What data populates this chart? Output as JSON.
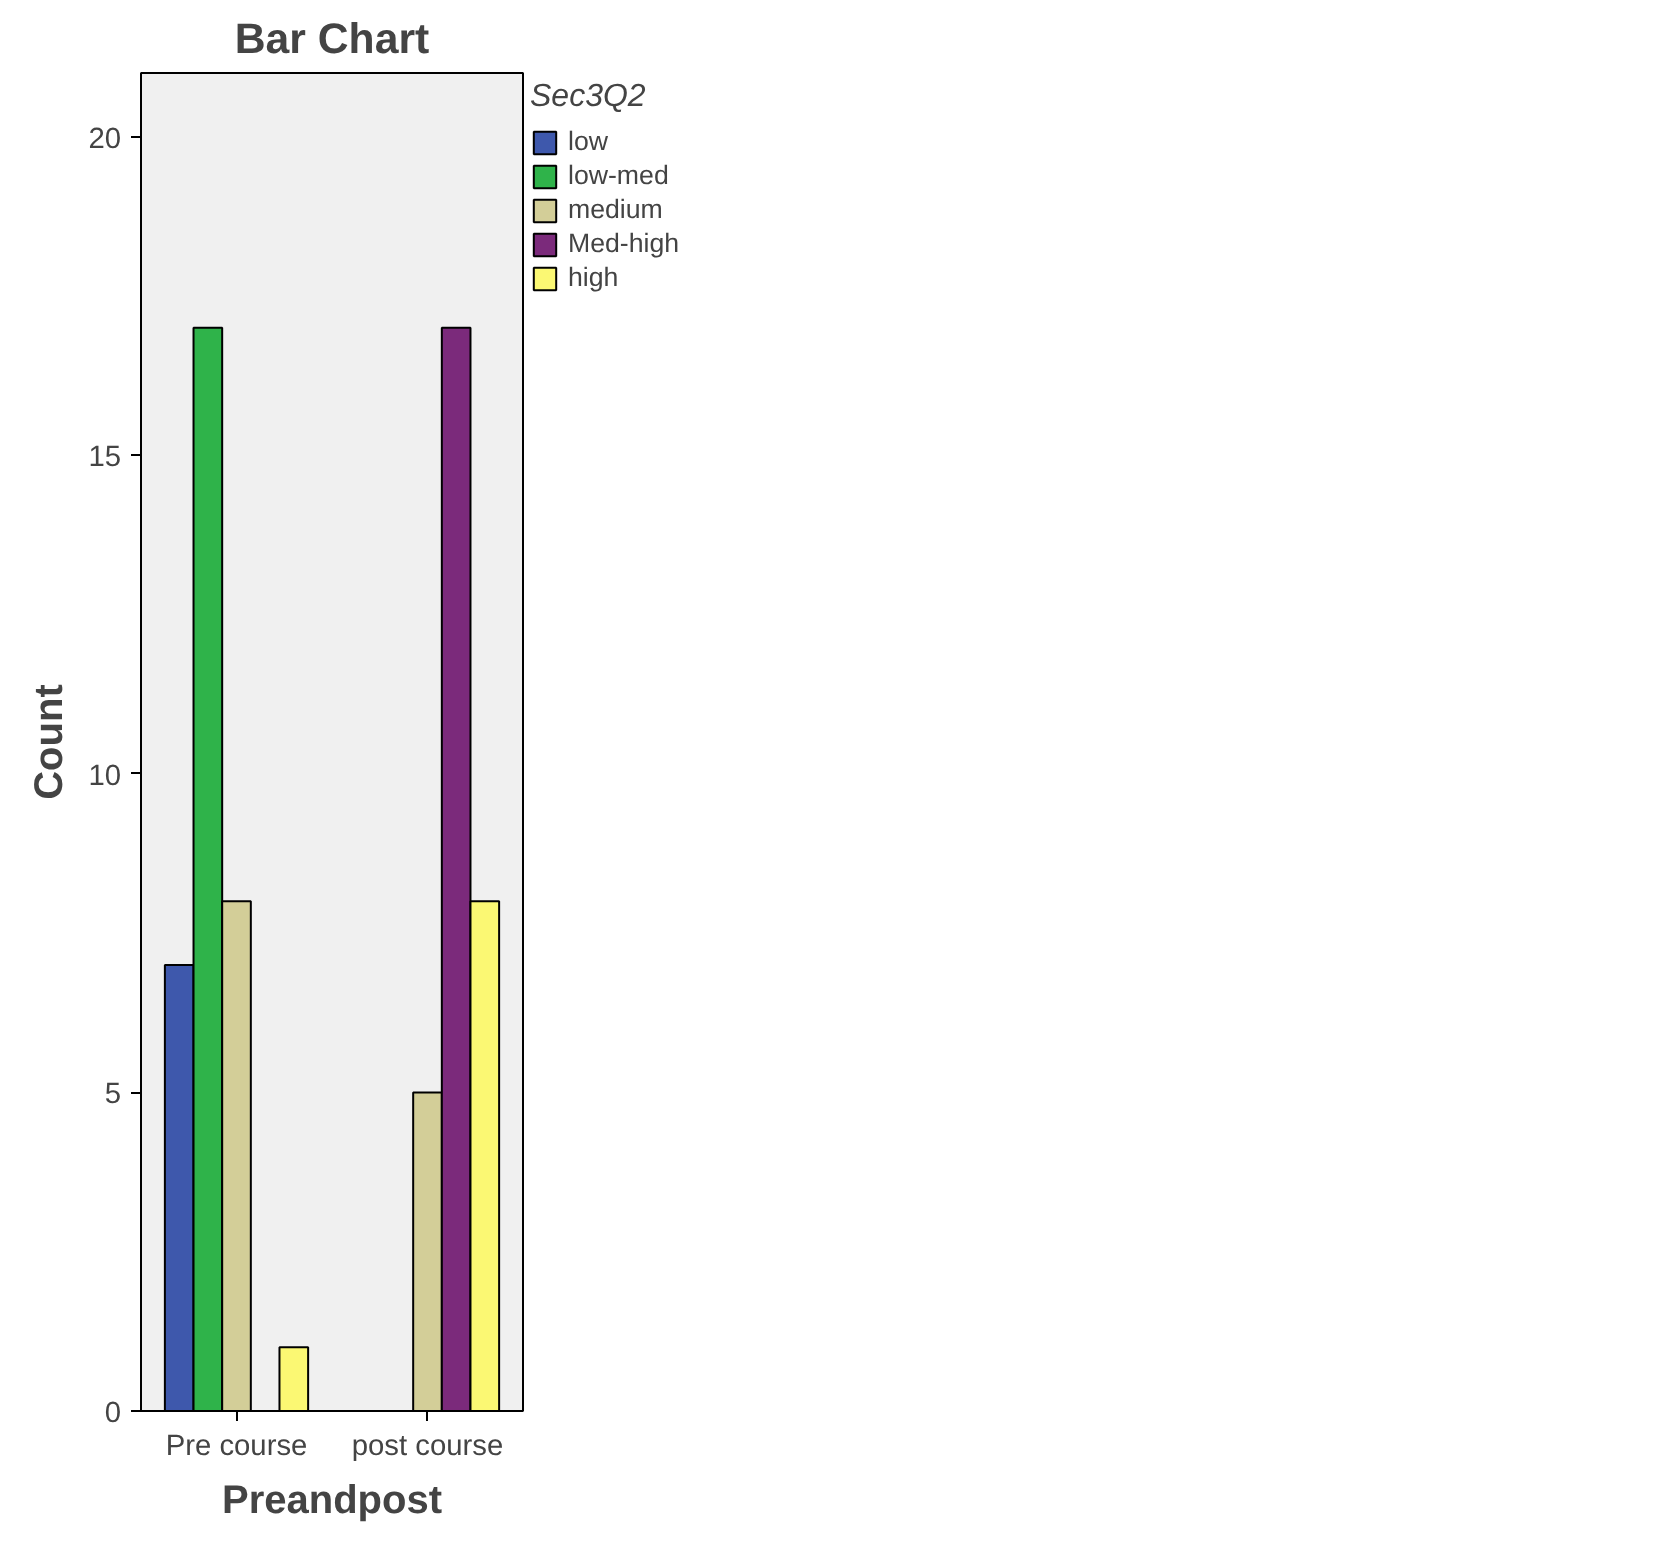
{
  "chart_data": {
    "type": "bar",
    "title": "Bar Chart",
    "xlabel": "Preandpost",
    "ylabel": "Count",
    "legend_title": "Sec3Q2",
    "categories": [
      "Pre course",
      "post course"
    ],
    "series": [
      {
        "name": "low",
        "color": "#3e58ac",
        "values": [
          7,
          null
        ]
      },
      {
        "name": "low-med",
        "color": "#2fb34a",
        "values": [
          17,
          null
        ]
      },
      {
        "name": "medium",
        "color": "#d3ce98",
        "values": [
          8,
          5
        ]
      },
      {
        "name": "Med-high",
        "color": "#7b2a7b",
        "values": [
          null,
          17
        ]
      },
      {
        "name": "high",
        "color": "#fbf873",
        "values": [
          1,
          8
        ]
      }
    ],
    "ylim": [
      0,
      21
    ],
    "yticks": [
      0,
      5,
      10,
      15,
      20
    ],
    "grid": false,
    "legend": "right"
  }
}
